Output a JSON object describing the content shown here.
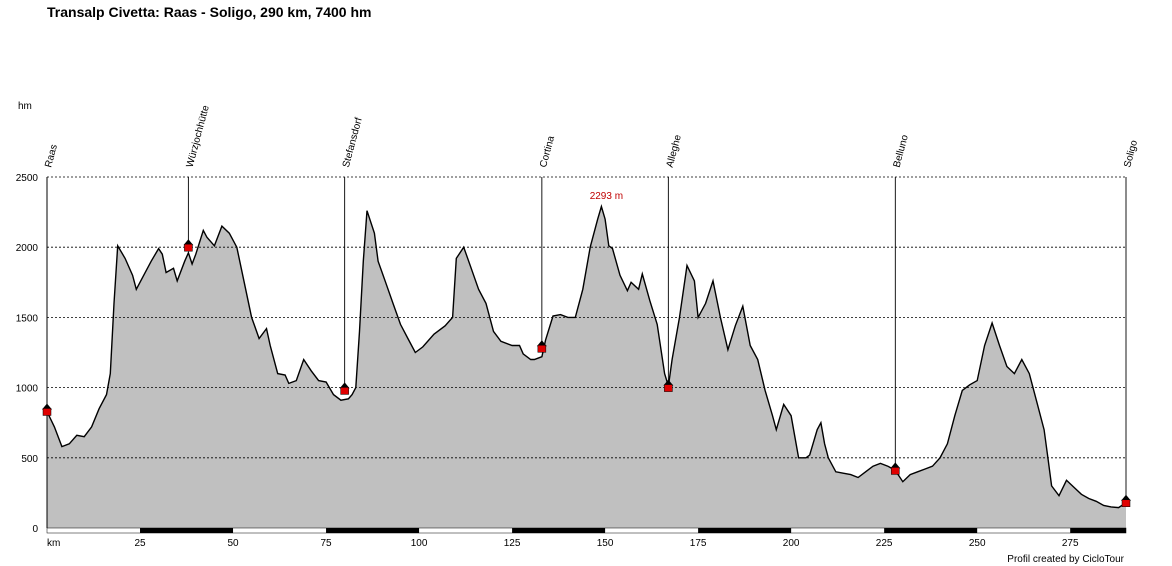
{
  "title": "Transalp Civetta: Raas - Soligo, 290 km, 7400 hm",
  "credit": "Profil created by CicloTour",
  "chart_data": {
    "type": "area",
    "ylabel": "hm",
    "xlabel": "km",
    "xlim": [
      0,
      290
    ],
    "ylim": [
      0,
      2500
    ],
    "x_ticks": [
      25,
      50,
      75,
      100,
      125,
      150,
      175,
      200,
      225,
      250,
      275
    ],
    "y_ticks": [
      0,
      500,
      1000,
      1500,
      2000,
      2500
    ],
    "grid": "horizontal dashed",
    "fill_color": "#c0c0c0",
    "line_color": "#000000",
    "max_annotation": {
      "label": "2293 m",
      "x": 149,
      "y": 2293
    },
    "waypoints": [
      {
        "name": "Raas",
        "x": 0,
        "y": 830
      },
      {
        "name": "Würzjochhütte",
        "x": 38,
        "y": 2000
      },
      {
        "name": "Stefansdorf",
        "x": 80,
        "y": 980
      },
      {
        "name": "Cortina",
        "x": 133,
        "y": 1280
      },
      {
        "name": "Alleghe",
        "x": 167,
        "y": 1000
      },
      {
        "name": "Belluno",
        "x": 228,
        "y": 410
      },
      {
        "name": "Soligo",
        "x": 290,
        "y": 180
      }
    ],
    "profile": [
      [
        0,
        830
      ],
      [
        2,
        720
      ],
      [
        4,
        580
      ],
      [
        6,
        600
      ],
      [
        8,
        660
      ],
      [
        10,
        650
      ],
      [
        12,
        720
      ],
      [
        14,
        850
      ],
      [
        16,
        950
      ],
      [
        17,
        1100
      ],
      [
        18,
        1600
      ],
      [
        19,
        2010
      ],
      [
        21,
        1920
      ],
      [
        23,
        1800
      ],
      [
        24,
        1700
      ],
      [
        26,
        1800
      ],
      [
        28,
        1900
      ],
      [
        30,
        1990
      ],
      [
        31,
        1950
      ],
      [
        32,
        1820
      ],
      [
        34,
        1850
      ],
      [
        35,
        1760
      ],
      [
        37,
        1900
      ],
      [
        38,
        1960
      ],
      [
        39,
        1880
      ],
      [
        40,
        1950
      ],
      [
        42,
        2120
      ],
      [
        43,
        2070
      ],
      [
        45,
        2010
      ],
      [
        47,
        2150
      ],
      [
        49,
        2100
      ],
      [
        51,
        2000
      ],
      [
        53,
        1750
      ],
      [
        55,
        1500
      ],
      [
        57,
        1350
      ],
      [
        59,
        1420
      ],
      [
        60,
        1300
      ],
      [
        62,
        1100
      ],
      [
        64,
        1090
      ],
      [
        65,
        1030
      ],
      [
        67,
        1050
      ],
      [
        69,
        1200
      ],
      [
        71,
        1120
      ],
      [
        73,
        1050
      ],
      [
        75,
        1040
      ],
      [
        77,
        950
      ],
      [
        79,
        910
      ],
      [
        81,
        920
      ],
      [
        82,
        950
      ],
      [
        83,
        1000
      ],
      [
        84,
        1400
      ],
      [
        85,
        1900
      ],
      [
        86,
        2260
      ],
      [
        88,
        2100
      ],
      [
        89,
        1900
      ],
      [
        91,
        1750
      ],
      [
        93,
        1600
      ],
      [
        95,
        1450
      ],
      [
        97,
        1350
      ],
      [
        99,
        1250
      ],
      [
        101,
        1290
      ],
      [
        104,
        1380
      ],
      [
        107,
        1440
      ],
      [
        109,
        1500
      ],
      [
        110,
        1920
      ],
      [
        112,
        2000
      ],
      [
        114,
        1850
      ],
      [
        116,
        1700
      ],
      [
        118,
        1600
      ],
      [
        120,
        1400
      ],
      [
        122,
        1330
      ],
      [
        125,
        1300
      ],
      [
        127,
        1300
      ],
      [
        128,
        1240
      ],
      [
        130,
        1200
      ],
      [
        131,
        1200
      ],
      [
        133,
        1220
      ],
      [
        134,
        1340
      ],
      [
        136,
        1510
      ],
      [
        138,
        1520
      ],
      [
        140,
        1500
      ],
      [
        142,
        1500
      ],
      [
        144,
        1700
      ],
      [
        146,
        2000
      ],
      [
        148,
        2200
      ],
      [
        149,
        2290
      ],
      [
        150,
        2200
      ],
      [
        151,
        2010
      ],
      [
        152,
        1990
      ],
      [
        154,
        1800
      ],
      [
        156,
        1690
      ],
      [
        157,
        1750
      ],
      [
        159,
        1700
      ],
      [
        160,
        1810
      ],
      [
        162,
        1620
      ],
      [
        164,
        1450
      ],
      [
        166,
        1100
      ],
      [
        167,
        1010
      ],
      [
        168,
        1200
      ],
      [
        170,
        1500
      ],
      [
        172,
        1870
      ],
      [
        174,
        1760
      ],
      [
        175,
        1500
      ],
      [
        177,
        1600
      ],
      [
        179,
        1760
      ],
      [
        181,
        1500
      ],
      [
        183,
        1270
      ],
      [
        185,
        1440
      ],
      [
        187,
        1580
      ],
      [
        189,
        1300
      ],
      [
        191,
        1200
      ],
      [
        193,
        980
      ],
      [
        195,
        800
      ],
      [
        196,
        700
      ],
      [
        198,
        880
      ],
      [
        200,
        800
      ],
      [
        202,
        500
      ],
      [
        204,
        500
      ],
      [
        205,
        520
      ],
      [
        207,
        700
      ],
      [
        208,
        750
      ],
      [
        209,
        600
      ],
      [
        210,
        500
      ],
      [
        212,
        400
      ],
      [
        214,
        390
      ],
      [
        216,
        380
      ],
      [
        218,
        360
      ],
      [
        220,
        400
      ],
      [
        222,
        440
      ],
      [
        224,
        460
      ],
      [
        226,
        440
      ],
      [
        228,
        410
      ],
      [
        230,
        330
      ],
      [
        232,
        380
      ],
      [
        234,
        400
      ],
      [
        236,
        420
      ],
      [
        238,
        440
      ],
      [
        240,
        500
      ],
      [
        242,
        600
      ],
      [
        244,
        800
      ],
      [
        246,
        980
      ],
      [
        248,
        1020
      ],
      [
        250,
        1050
      ],
      [
        252,
        1300
      ],
      [
        254,
        1460
      ],
      [
        256,
        1300
      ],
      [
        258,
        1150
      ],
      [
        260,
        1100
      ],
      [
        262,
        1200
      ],
      [
        264,
        1100
      ],
      [
        266,
        900
      ],
      [
        268,
        700
      ],
      [
        269,
        500
      ],
      [
        270,
        300
      ],
      [
        272,
        230
      ],
      [
        274,
        340
      ],
      [
        276,
        290
      ],
      [
        278,
        240
      ],
      [
        280,
        210
      ],
      [
        282,
        190
      ],
      [
        284,
        160
      ],
      [
        286,
        150
      ],
      [
        288,
        145
      ],
      [
        290,
        180
      ]
    ]
  }
}
